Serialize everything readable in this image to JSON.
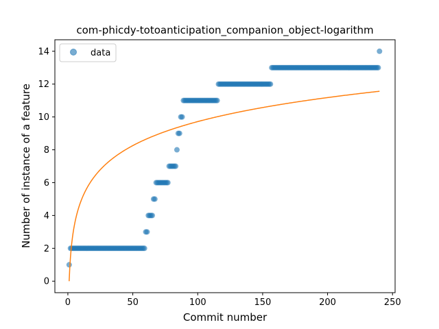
{
  "chart_data": {
    "type": "scatter",
    "title": "com-phicdy-totoanticipation_companion_object-logarithm",
    "xlabel": "Commit number",
    "ylabel": "Number of instance of a feature",
    "xlim": [
      -10,
      252
    ],
    "ylim": [
      -0.7,
      14.7
    ],
    "xticks": [
      0,
      50,
      100,
      150,
      200,
      250
    ],
    "yticks": [
      0,
      2,
      4,
      6,
      8,
      10,
      12,
      14
    ],
    "grid": false,
    "legend": {
      "placement": "top-left",
      "entries": [
        "data"
      ]
    },
    "colors": {
      "scatter": "#1f77b4",
      "fit": "#ff7f0e"
    },
    "series": [
      {
        "name": "data",
        "kind": "scatter",
        "steps": [
          {
            "from": 1,
            "to": 1,
            "y": 1
          },
          {
            "from": 2,
            "to": 59,
            "y": 2
          },
          {
            "from": 60,
            "to": 61,
            "y": 3
          },
          {
            "from": 62,
            "to": 65,
            "y": 4
          },
          {
            "from": 66,
            "to": 67,
            "y": 5
          },
          {
            "from": 68,
            "to": 77,
            "y": 6
          },
          {
            "from": 78,
            "to": 83,
            "y": 7
          },
          {
            "from": 84,
            "to": 84,
            "y": 8
          },
          {
            "from": 85,
            "to": 86,
            "y": 9
          },
          {
            "from": 87,
            "to": 88,
            "y": 10
          },
          {
            "from": 89,
            "to": 115,
            "y": 11
          },
          {
            "from": 116,
            "to": 156,
            "y": 12
          },
          {
            "from": 157,
            "to": 239,
            "y": 13
          },
          {
            "from": 240,
            "to": 240,
            "y": 14
          }
        ]
      },
      {
        "name": "fit",
        "kind": "line",
        "model": "a*ln(x)",
        "a": 2.11,
        "x_range": [
          1,
          240
        ]
      }
    ]
  }
}
